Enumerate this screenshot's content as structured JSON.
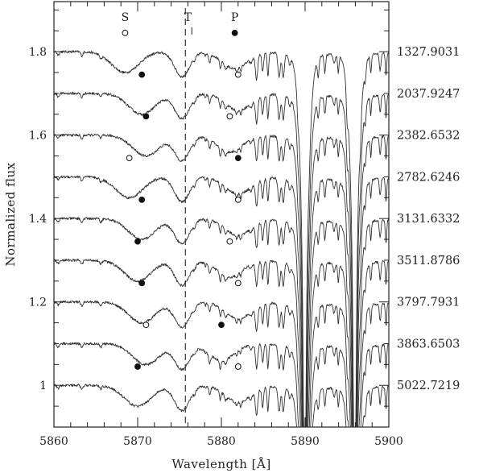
{
  "chart_data": {
    "type": "line",
    "title": "",
    "xlabel": "Wavelength [Å]",
    "ylabel": "Normalized flux",
    "xlim": [
      5860,
      5900
    ],
    "ylim": [
      0.9,
      1.92
    ],
    "x_ticks": [
      {
        "value": 5860,
        "label": "5860"
      },
      {
        "value": 5870,
        "label": "5870"
      },
      {
        "value": 5880,
        "label": "5880"
      },
      {
        "value": 5890,
        "label": "5890"
      },
      {
        "value": 5900,
        "label": "5900"
      }
    ],
    "y_ticks": [
      {
        "value": 1.0,
        "label": "1"
      },
      {
        "value": 1.2,
        "label": "1.2"
      },
      {
        "value": 1.4,
        "label": "1.4"
      },
      {
        "value": 1.6,
        "label": "1.6"
      },
      {
        "value": 1.8,
        "label": "1.8"
      }
    ],
    "component_labels": [
      {
        "text": "S",
        "x": 5868.5
      },
      {
        "text": "T",
        "x": 5876.0
      },
      {
        "text": "P",
        "x": 5881.6
      }
    ],
    "rest_wavelength": 5875.7,
    "sodium_lines": [
      5889.95,
      5895.92
    ],
    "series": [
      {
        "name": "1327.9031",
        "offset": 1.8,
        "secondary": 5868.5,
        "primary": 5881.6,
        "filled": "primary"
      },
      {
        "name": "2037.9247",
        "offset": 1.7,
        "secondary": 5870.5,
        "primary": 5882.0,
        "filled": "secondary"
      },
      {
        "name": "2382.6532",
        "offset": 1.6,
        "secondary": 5871.0,
        "primary": 5881.0,
        "filled": "secondary"
      },
      {
        "name": "2782.6246",
        "offset": 1.5,
        "secondary": 5869.0,
        "primary": 5882.0,
        "filled": "primary"
      },
      {
        "name": "3131.6332",
        "offset": 1.4,
        "secondary": 5870.5,
        "primary": 5882.0,
        "filled": "secondary"
      },
      {
        "name": "3511.8786",
        "offset": 1.3,
        "secondary": 5870.0,
        "primary": 5881.0,
        "filled": "secondary"
      },
      {
        "name": "3797.7931",
        "offset": 1.2,
        "secondary": 5870.5,
        "primary": 5882.0,
        "filled": "secondary"
      },
      {
        "name": "3863.6503",
        "offset": 1.1,
        "secondary": 5871.0,
        "primary": 5880.0,
        "filled": "primary"
      },
      {
        "name": "5022.7219",
        "offset": 1.0,
        "secondary": 5870.0,
        "primary": 5882.0,
        "filled": "secondary"
      }
    ]
  }
}
